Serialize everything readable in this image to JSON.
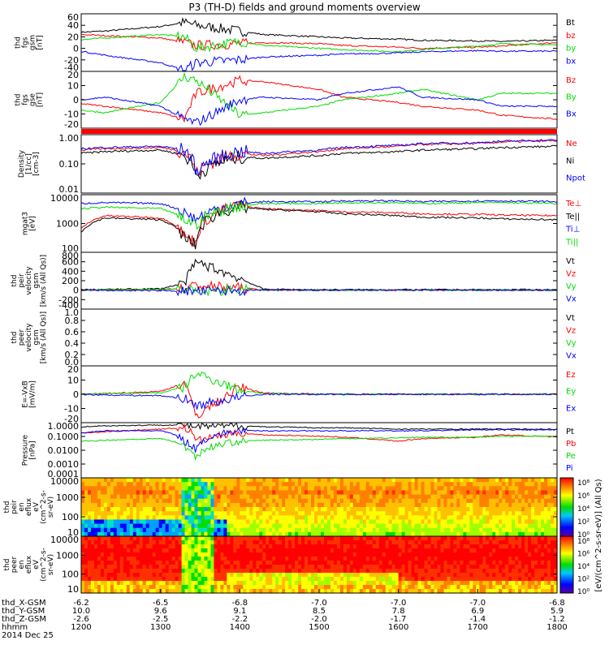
{
  "title": "P3 (TH-D) fields and ground moments overview",
  "footer": {
    "date": "2014 Dec 25",
    "labels": [
      "thd_X-GSM",
      "thd_Y-GSM",
      "thd_Z-GSM",
      "hhmm"
    ],
    "rows": [
      [
        "-6.2",
        "-6.5",
        "-6.8",
        "-7.0",
        "-7.0",
        "-7.0",
        "-6.8"
      ],
      [
        "10.0",
        "9.6",
        "9.1",
        "8.5",
        "7.8",
        "6.9",
        "5.9"
      ],
      [
        "-2.6",
        "-2.5",
        "-2.2",
        "-2.0",
        "-1.7",
        "-1.4",
        "-1.2"
      ],
      [
        "1200",
        "1300",
        "1400",
        "1500",
        "1600",
        "1700",
        "1800"
      ]
    ]
  },
  "colors": {
    "black": "#000000",
    "red": "#ff0000",
    "green": "#00dd00",
    "blue": "#0000ff"
  },
  "chart_data": [
    {
      "id": "fgs-gsm",
      "type": "line",
      "ylabel": [
        "thd",
        "fgs",
        "gsm",
        "[nT]"
      ],
      "yticks": [
        "60",
        "40",
        "20",
        "0",
        "-20",
        "-40"
      ],
      "ylim": [
        -40,
        60
      ],
      "x": [
        1200,
        1230,
        1300,
        1330,
        1345,
        1400,
        1430,
        1500,
        1530,
        1600,
        1630,
        1700,
        1730,
        1800
      ],
      "series": [
        {
          "name": "Bt",
          "color": "#000000",
          "values": [
            28,
            30,
            38,
            45,
            40,
            30,
            24,
            20,
            18,
            16,
            14,
            13,
            12,
            14
          ]
        },
        {
          "name": "bz",
          "color": "#ff0000",
          "values": [
            24,
            22,
            18,
            10,
            5,
            8,
            10,
            8,
            5,
            2,
            0,
            2,
            4,
            10
          ]
        },
        {
          "name": "by",
          "color": "#00dd00",
          "values": [
            15,
            18,
            24,
            20,
            0,
            12,
            5,
            0,
            -2,
            -6,
            -2,
            4,
            8,
            6
          ]
        },
        {
          "name": "bx",
          "color": "#0000ff",
          "values": [
            -5,
            -12,
            -25,
            -38,
            -25,
            -20,
            -15,
            -12,
            -10,
            -8,
            -6,
            -4,
            -5,
            -5
          ]
        }
      ]
    },
    {
      "id": "fgs-gse",
      "type": "line",
      "ylabel": [
        "thd",
        "fgs",
        "gse",
        "[nT]"
      ],
      "yticks": [
        "20",
        "10",
        "0",
        "-10",
        "-20"
      ],
      "ylim": [
        -22,
        22
      ],
      "x": [
        1200,
        1230,
        1300,
        1330,
        1345,
        1400,
        1430,
        1500,
        1530,
        1600,
        1630,
        1700,
        1730,
        1800
      ],
      "series": [
        {
          "name": "Bz",
          "color": "#ff0000",
          "values": [
            -3,
            -5,
            -10,
            -15,
            5,
            15,
            14,
            8,
            2,
            -2,
            -5,
            -8,
            -12,
            -15
          ]
        },
        {
          "name": "By",
          "color": "#00dd00",
          "values": [
            -8,
            -10,
            -2,
            18,
            15,
            -12,
            -10,
            -5,
            0,
            5,
            8,
            0,
            5,
            5
          ]
        },
        {
          "name": "Bx",
          "color": "#0000ff",
          "values": [
            0,
            2,
            -5,
            -15,
            -18,
            0,
            2,
            0,
            5,
            10,
            2,
            0,
            -5,
            -5
          ]
        }
      ]
    },
    {
      "id": "density",
      "type": "line",
      "scale": "log",
      "ylabel": [
        "Density",
        "[1/cc]",
        "[cm-3]"
      ],
      "yticks": [
        "1.00",
        "0.10",
        "0.01"
      ],
      "ylim": [
        0.01,
        1.5
      ],
      "x": [
        1200,
        1230,
        1300,
        1330,
        1345,
        1400,
        1430,
        1500,
        1530,
        1600,
        1630,
        1700,
        1730,
        1800
      ],
      "series": [
        {
          "name": "Ne",
          "color": "#ff0000",
          "values": [
            0.4,
            0.45,
            0.5,
            0.35,
            0.05,
            0.3,
            0.25,
            0.35,
            0.45,
            0.55,
            0.65,
            0.7,
            0.8,
            0.9
          ]
        },
        {
          "name": "Ni",
          "color": "#000000",
          "values": [
            0.3,
            0.35,
            0.4,
            0.25,
            0.04,
            0.22,
            0.2,
            0.25,
            0.3,
            0.35,
            0.4,
            0.45,
            0.5,
            0.55
          ]
        },
        {
          "name": "Npot",
          "color": "#0000ff",
          "values": [
            0.45,
            0.5,
            0.55,
            0.4,
            0.06,
            0.35,
            0.3,
            0.4,
            0.5,
            0.6,
            0.7,
            0.75,
            0.85,
            0.95
          ]
        }
      ]
    },
    {
      "id": "temperature",
      "type": "line",
      "scale": "log",
      "ylabel": [
        "mgat3",
        "[eV]"
      ],
      "yticks": [
        "10000",
        "1000",
        "100"
      ],
      "ylim": [
        40,
        12000
      ],
      "x": [
        1200,
        1230,
        1300,
        1330,
        1345,
        1400,
        1430,
        1500,
        1530,
        1600,
        1630,
        1700,
        1730,
        1800
      ],
      "series": [
        {
          "name": "Te⊥",
          "color": "#ff0000",
          "values": [
            400,
            1500,
            1200,
            200,
            100,
            4000,
            3000,
            2500,
            2200,
            2000,
            1800,
            1700,
            1600,
            1500
          ]
        },
        {
          "name": "Te||",
          "color": "#000000",
          "values": [
            300,
            1200,
            1000,
            150,
            80,
            3500,
            2800,
            2200,
            1800,
            1500,
            1300,
            1200,
            1100,
            1000
          ]
        },
        {
          "name": "Ti⊥",
          "color": "#0000ff",
          "values": [
            5000,
            5500,
            5000,
            2000,
            1000,
            5000,
            6000,
            6000,
            6500,
            6500,
            6000,
            6500,
            6500,
            6000
          ]
        },
        {
          "name": "Ti||",
          "color": "#00dd00",
          "values": [
            3000,
            3500,
            3000,
            1000,
            600,
            4000,
            5000,
            5000,
            5500,
            5500,
            5000,
            5500,
            5500,
            5000
          ]
        }
      ]
    },
    {
      "id": "peir-velocity",
      "type": "line",
      "ylabel": [
        "thd",
        "peir",
        "velocity",
        "gsm",
        "[km/s (All Qs)]"
      ],
      "yticks": [
        "800",
        "600",
        "400",
        "200",
        "0",
        "-200",
        "-400"
      ],
      "ylim": [
        -400,
        800
      ],
      "x": [
        1200,
        1230,
        1300,
        1330,
        1345,
        1400,
        1430,
        1500,
        1530,
        1600,
        1630,
        1700,
        1730,
        1800
      ],
      "series": [
        {
          "name": "Vt",
          "color": "#000000",
          "values": [
            10,
            15,
            30,
            150,
            600,
            250,
            20,
            10,
            10,
            10,
            10,
            10,
            10,
            10
          ]
        },
        {
          "name": "Vz",
          "color": "#ff0000",
          "values": [
            0,
            5,
            10,
            40,
            100,
            50,
            5,
            0,
            0,
            0,
            0,
            0,
            0,
            0
          ]
        },
        {
          "name": "Vy",
          "color": "#00dd00",
          "values": [
            0,
            10,
            20,
            30,
            -50,
            20,
            0,
            0,
            0,
            0,
            0,
            0,
            0,
            0
          ]
        },
        {
          "name": "Vx",
          "color": "#0000ff",
          "values": [
            0,
            -5,
            -10,
            -20,
            -30,
            -10,
            0,
            0,
            0,
            0,
            0,
            0,
            0,
            0
          ]
        }
      ]
    },
    {
      "id": "peer-velocity",
      "type": "line",
      "ylabel": [
        "thd",
        "peer",
        "velocity",
        "gsm",
        "[km/s (All Qs)]"
      ],
      "yticks": [
        "1.0",
        "0.8",
        "0.6",
        "0.4",
        "0.2",
        "0.0"
      ],
      "ylim": [
        0,
        1
      ],
      "series": [
        {
          "name": "Vt",
          "color": "#000000",
          "values": []
        },
        {
          "name": "Vz",
          "color": "#ff0000",
          "values": []
        },
        {
          "name": "Vy",
          "color": "#00dd00",
          "values": []
        },
        {
          "name": "Vx",
          "color": "#0000ff",
          "values": []
        }
      ]
    },
    {
      "id": "efield",
      "type": "line",
      "ylabel": [
        "E=-VxB",
        "[mV/m]"
      ],
      "yticks": [
        "20",
        "10",
        "0",
        "-10",
        "-20"
      ],
      "ylim": [
        -20,
        20
      ],
      "x": [
        1200,
        1230,
        1300,
        1330,
        1345,
        1400,
        1430,
        1500,
        1530,
        1600,
        1630,
        1700,
        1730,
        1800
      ],
      "series": [
        {
          "name": "Ez",
          "color": "#ff0000",
          "values": [
            0,
            0.5,
            2,
            8,
            -15,
            5,
            1,
            0,
            0,
            0,
            0,
            0,
            0,
            0
          ]
        },
        {
          "name": "Ey",
          "color": "#00dd00",
          "values": [
            0,
            0.5,
            1,
            5,
            15,
            3,
            0.5,
            0,
            0,
            0,
            0,
            0,
            0,
            0
          ]
        },
        {
          "name": "Ex",
          "color": "#0000ff",
          "values": [
            0,
            -0.5,
            -1,
            -3,
            -8,
            -2,
            0,
            0,
            0,
            0,
            0,
            0,
            0,
            0
          ]
        }
      ]
    },
    {
      "id": "pressure",
      "type": "line",
      "scale": "log",
      "ylabel": [
        "Pressure",
        "[nPa]"
      ],
      "yticks": [
        "1.0000",
        "0.1000",
        "0.0100",
        "0.0010",
        "0.0001"
      ],
      "ylim": [
        0.0001,
        1.2
      ],
      "x": [
        1200,
        1230,
        1300,
        1330,
        1345,
        1400,
        1430,
        1500,
        1530,
        1600,
        1630,
        1700,
        1730,
        1800
      ],
      "series": [
        {
          "name": "Pt",
          "color": "#000000",
          "values": [
            0.6,
            0.7,
            0.8,
            0.8,
            0.6,
            0.7,
            0.6,
            0.5,
            0.5,
            0.4,
            0.4,
            0.4,
            0.4,
            0.4
          ]
        },
        {
          "name": "Pb",
          "color": "#ff0000",
          "values": [
            0.2,
            0.25,
            0.4,
            0.5,
            0.05,
            0.2,
            0.15,
            0.12,
            0.1,
            0.05,
            0.08,
            0.1,
            0.15,
            0.1
          ]
        },
        {
          "name": "Pe",
          "color": "#00dd00",
          "values": [
            0.05,
            0.06,
            0.08,
            0.02,
            0.003,
            0.05,
            0.06,
            0.07,
            0.08,
            0.09,
            0.1,
            0.1,
            0.12,
            0.12
          ]
        },
        {
          "name": "Pi",
          "color": "#0000ff",
          "values": [
            0.2,
            0.3,
            0.3,
            0.05,
            0.01,
            0.3,
            0.3,
            0.3,
            0.3,
            0.3,
            0.3,
            0.35,
            0.35,
            0.35
          ]
        }
      ]
    },
    {
      "id": "peir-eflux",
      "type": "heatmap",
      "ylabel": [
        "thd",
        "peir",
        "en",
        "eflux",
        "eV",
        "(cm^2-s-",
        "sr-eV)"
      ],
      "yticks": [
        "10000",
        "1000",
        "100",
        "10"
      ]
    },
    {
      "id": "peer-eflux",
      "type": "heatmap",
      "ylabel": [
        "thd",
        "peer",
        "en",
        "eflux",
        "eV",
        "(cm^2-s-",
        "sr-eV)"
      ],
      "yticks": [
        "10000",
        "1000",
        "100",
        "10"
      ]
    }
  ],
  "colorbar": {
    "label": "[eV/(cm^2-s-sr-eV)] (All Qs)",
    "ticks_top": [
      "10⁸",
      "10⁶",
      "10⁴",
      "10²",
      "10⁰"
    ],
    "ticks_bottom": [
      "10⁸",
      "10⁶",
      "10⁴",
      "10²",
      "10⁰"
    ]
  }
}
